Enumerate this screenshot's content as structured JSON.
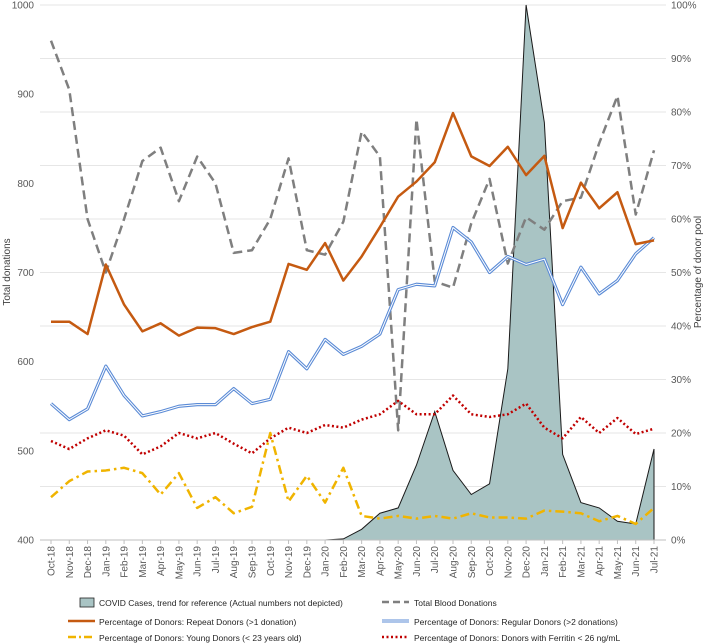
{
  "chart_data": {
    "type": "line",
    "title": "",
    "ylabel_left": "Total donations",
    "ylabel_right": "Percentage of donor pool",
    "ylim_left": [
      400,
      1000
    ],
    "ylim_right": [
      0,
      100
    ],
    "yticks_left": [
      "400",
      "500",
      "600",
      "700",
      "800",
      "900",
      "1000"
    ],
    "yticks_right": [
      "0%",
      "10%",
      "20%",
      "30%",
      "40%",
      "50%",
      "60%",
      "70%",
      "80%",
      "90%",
      "100%"
    ],
    "categories": [
      "Oct-18",
      "Nov-18",
      "Dec-18",
      "Jan-19",
      "Feb-19",
      "Mar-19",
      "Apr-19",
      "May-19",
      "Jun-19",
      "Jul-19",
      "Aug-19",
      "Sep-19",
      "Oct-19",
      "Nov-19",
      "Dec-19",
      "Jan-20",
      "Feb-20",
      "Mar-20",
      "Apr-20",
      "May-20",
      "Jun-20",
      "Jul-20",
      "Aug-20",
      "Sep-20",
      "Oct-20",
      "Nov-20",
      "Dec-20",
      "Jan-21",
      "Feb-21",
      "Mar-21",
      "Apr-21",
      "May-21",
      "Jun-21",
      "Jul-21"
    ],
    "covid": {
      "name": "COVID Cases, trend for reference (Actual numbers not depicted)",
      "color": "#a9c4c4",
      "axis": "right",
      "values": [
        0,
        0,
        0,
        0,
        0,
        0,
        0,
        0,
        0,
        0,
        0,
        0,
        0,
        0,
        0,
        0,
        0.2,
        2,
        5,
        6,
        14,
        24,
        13,
        8.5,
        10.5,
        32,
        100,
        78,
        16,
        7,
        6,
        3.5,
        3,
        17
      ]
    },
    "series": [
      {
        "name": "Total Blood Donations",
        "axis": "left",
        "style": "dashed",
        "color": "#7f7f7f",
        "values": [
          960,
          905,
          760,
          700,
          760,
          825,
          840,
          780,
          830,
          800,
          722,
          725,
          760,
          828,
          725,
          720,
          757,
          858,
          830,
          523,
          872,
          690,
          683,
          755,
          805,
          710,
          762,
          748,
          780,
          784,
          845,
          898,
          765,
          837
        ]
      },
      {
        "name": "Percentage of Donors: Repeat Donors (>1 donation)",
        "axis": "right",
        "style": "solid",
        "color": "#c55a11",
        "values": [
          40.8,
          40.8,
          38.5,
          51.5,
          44,
          39,
          40.5,
          38.2,
          39.7,
          39.6,
          38.5,
          39.8,
          40.8,
          51.6,
          50.5,
          55.5,
          48.5,
          53,
          58.5,
          64.2,
          67,
          70.6,
          79.8,
          71.7,
          69.9,
          73.5,
          68.2,
          71.8,
          58.3,
          66.8,
          62,
          65,
          55.3,
          56
        ]
      },
      {
        "name": "Percentage of Donors: Regular Donors (>2 donations)",
        "axis": "right",
        "style": "double",
        "color": "#5b8bd6",
        "values": [
          25.5,
          22.5,
          24.5,
          32.5,
          27,
          23.2,
          24,
          25,
          25.3,
          25.3,
          28.3,
          25.5,
          26.3,
          35.2,
          32,
          37.5,
          34.7,
          36.2,
          38.5,
          46.8,
          47.8,
          47.5,
          58.4,
          55.7,
          50,
          53,
          51.5,
          52.5,
          44,
          51,
          46,
          48.5,
          53.5,
          56.5
        ]
      },
      {
        "name": "Percentage of Donors: Young Donors (< 23 years old)",
        "axis": "right",
        "style": "dashdot",
        "color": "#f0b400",
        "values": [
          8,
          11,
          12.8,
          13,
          13.5,
          12.5,
          8.5,
          12.5,
          6,
          8,
          5,
          6.2,
          20,
          7.2,
          12,
          7,
          13.5,
          4.5,
          4,
          4.5,
          4,
          4.5,
          4,
          5,
          4.2,
          4.2,
          4,
          5.5,
          5.3,
          5,
          3.5,
          4.5,
          3,
          6
        ]
      },
      {
        "name": "Percentage of Donors: Donors with Ferritin < 26 ng/mL",
        "axis": "right",
        "style": "dotted",
        "color": "#c00000",
        "values": [
          18.5,
          17,
          19,
          20.5,
          19.5,
          16,
          17.5,
          20,
          19,
          20,
          18,
          16.2,
          19,
          21,
          20,
          21.5,
          21,
          22.5,
          23.5,
          26,
          23.5,
          23.5,
          27,
          23.5,
          23,
          23.5,
          25.5,
          21,
          19,
          23,
          20,
          22.8,
          19.8,
          20.8
        ]
      }
    ],
    "legend_position": "bottom"
  }
}
